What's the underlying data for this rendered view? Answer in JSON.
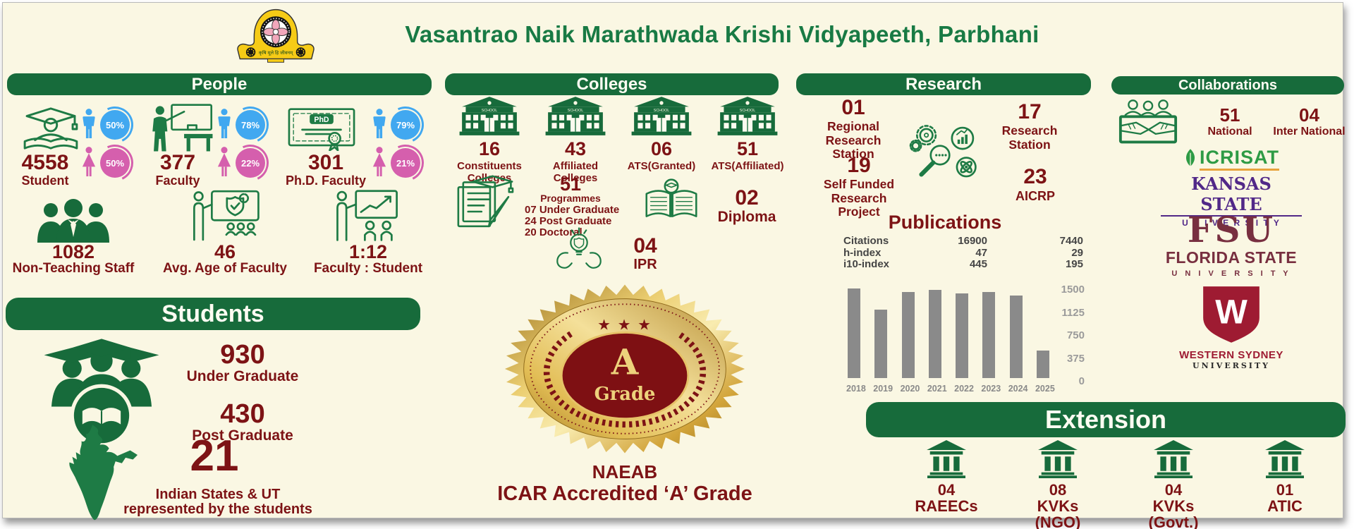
{
  "colors": {
    "background": "#FAF7E3",
    "primary_green": "#176B3B",
    "icon_green": "#1E7B45",
    "title_green": "#187A44",
    "maroon": "#7D1315",
    "male_blue": "#41A8F0",
    "female_pink": "#D55FAD",
    "chart_bar_gray": "#8A8A8A",
    "badge_gold": "#E4C25F",
    "kansas_purple": "#512888",
    "fsu_garnet": "#782F40",
    "wsu_crimson": "#9E1B32"
  },
  "logo": {
    "motto": "कृषि मूले हि जीवनम्"
  },
  "header": {
    "title": "Vasantrao Naik Marathwada Krishi Vidyapeeth, Parbhani"
  },
  "people": {
    "title": "People",
    "stats": [
      {
        "value": "4558",
        "label": "Student",
        "male_pct": "50%",
        "female_pct": "50%"
      },
      {
        "value": "377",
        "label": "Faculty",
        "male_pct": "78%",
        "female_pct": "22%"
      },
      {
        "value": "301",
        "label": "Ph.D. Faculty",
        "male_pct": "79%",
        "female_pct": "21%"
      }
    ],
    "extra": [
      {
        "value": "1082",
        "label": "Non-Teaching Staff"
      },
      {
        "value": "46",
        "label": "Avg. Age of Faculty"
      },
      {
        "value": "1:12",
        "label": "Faculty : Student"
      }
    ]
  },
  "students": {
    "title": "Students",
    "undergraduate": {
      "value": "930",
      "label": "Under Graduate"
    },
    "postgraduate": {
      "value": "430",
      "label": "Post Graduate"
    },
    "states": {
      "value": "21",
      "line1": "Indian States & UT",
      "line2": "represented by the students"
    }
  },
  "colleges": {
    "title": "Colleges",
    "building_sign": "SCHOOL",
    "buildings": [
      {
        "value": "16",
        "lines": [
          "Constituents",
          "Colleges"
        ]
      },
      {
        "value": "43",
        "lines": [
          "Affiliated",
          "Colleges"
        ]
      },
      {
        "value": "06",
        "lines": [
          "ATS(Granted)"
        ]
      },
      {
        "value": "51",
        "lines": [
          "ATS(Affiliated)"
        ]
      }
    ],
    "programmes": {
      "value": "51",
      "label": "Programmes",
      "lines": [
        "07 Under Graduate",
        "24 Post Graduate",
        "20 Doctoral"
      ]
    },
    "diploma": {
      "value": "02",
      "label": "Diploma"
    },
    "ipr": {
      "value": "04",
      "label": "IPR"
    }
  },
  "accreditation": {
    "stars": "★ ★ ★",
    "badge_line1": "A",
    "badge_line2": "Grade",
    "org": "NAEAB",
    "line": "ICAR Accredited ‘A’ Grade"
  },
  "research": {
    "title": "Research",
    "stats": [
      {
        "value": "01",
        "lines": [
          "Regional",
          "Research",
          "Station"
        ]
      },
      {
        "value": "17",
        "lines": [
          "Research",
          "Station"
        ]
      },
      {
        "value": "19",
        "lines": [
          "Self Funded",
          "Research",
          "Project"
        ]
      },
      {
        "value": "23",
        "lines": [
          "AICRP"
        ]
      }
    ]
  },
  "chart_data": {
    "type": "bar",
    "title": "Publications",
    "categories": [
      "2018",
      "2019",
      "2020",
      "2021",
      "2022",
      "2023",
      "2024",
      "2025"
    ],
    "values": [
      1460,
      1115,
      1405,
      1440,
      1380,
      1405,
      1345,
      455
    ],
    "xlabel": "",
    "ylabel": "",
    "ylim": [
      0,
      1500
    ],
    "yticks": [
      1500,
      1125,
      750,
      375,
      0
    ],
    "grid": false,
    "legend_position": "none",
    "bar_color": "#8A8A8A",
    "table": {
      "rows": [
        [
          "Citations",
          "16900",
          "7440"
        ],
        [
          "h-index",
          "47",
          "29"
        ],
        [
          "i10-index",
          "445",
          "195"
        ]
      ]
    }
  },
  "collaborations": {
    "title": "Collaborations",
    "national": {
      "value": "51",
      "label": "National"
    },
    "international": {
      "value": "04",
      "label": "Inter National"
    },
    "logos": {
      "icrisat": "ICRISAT",
      "kansas": {
        "line1": "KANSAS STATE",
        "line2": "U N I V E R S I T Y"
      },
      "fsu": {
        "line1": "FSU",
        "line2": "FLORIDA STATE",
        "line3": "U N I V E R S I T Y"
      },
      "wsu": {
        "letter": "W",
        "line1": "WESTERN SYDNEY",
        "line2": "UNIVERSITY"
      }
    }
  },
  "extension": {
    "title": "Extension",
    "items": [
      {
        "value": "04",
        "lines": [
          "RAEECs"
        ]
      },
      {
        "value": "08",
        "lines": [
          "KVKs",
          "(NGO)"
        ]
      },
      {
        "value": "04",
        "lines": [
          "KVKs",
          "(Govt.)"
        ]
      },
      {
        "value": "01",
        "lines": [
          "ATIC"
        ]
      }
    ]
  }
}
